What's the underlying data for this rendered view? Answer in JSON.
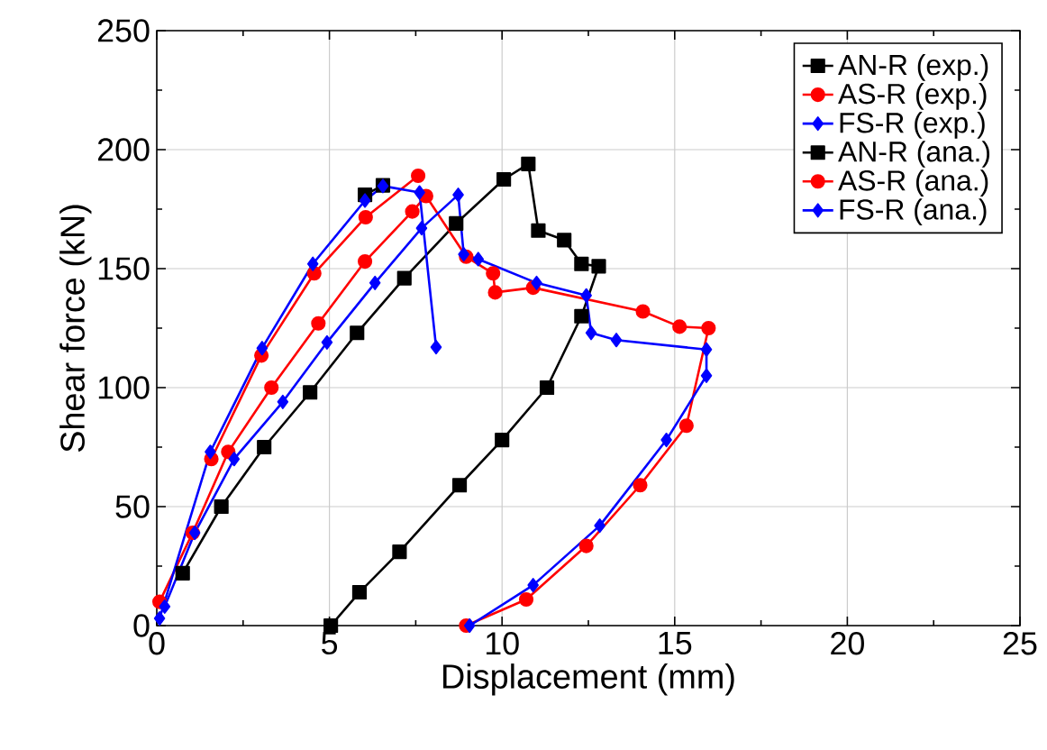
{
  "chart_data": {
    "type": "line",
    "xlabel": "Displacement (mm)",
    "ylabel": "Shear force (kN)",
    "xlim": [
      0,
      25
    ],
    "ylim": [
      0,
      250
    ],
    "xticks": [
      0,
      5,
      10,
      15,
      20,
      25
    ],
    "yticks": [
      0,
      50,
      100,
      150,
      200,
      250
    ],
    "grid": true,
    "legend": "top right",
    "line_style": "solid",
    "series": [
      {
        "name": "AN-R (exp.)",
        "color": "#000000",
        "marker": "square",
        "x": [
          0.75,
          1.87,
          3.11,
          4.44,
          5.8,
          7.17,
          8.67,
          10.05,
          10.76,
          11.05,
          11.8,
          12.3,
          12.8,
          12.3,
          11.3,
          10,
          8.77,
          7.03,
          5.87,
          5.04
        ],
        "values": [
          22,
          50,
          75,
          98,
          123,
          146,
          169,
          187.5,
          194,
          166,
          162,
          152,
          151,
          130,
          100,
          78,
          59,
          31,
          14,
          0
        ]
      },
      {
        "name": "AS-R (exp.)",
        "color": "#ff0000",
        "marker": "circle",
        "x": [
          0.08,
          1.04,
          2.07,
          3.32,
          4.68,
          6.03,
          7.4,
          7.8,
          8.96,
          9.74,
          9.8,
          10.9,
          14.08,
          15.14,
          15.98,
          15.34,
          14,
          12.44,
          10.7,
          8.96
        ],
        "values": [
          10,
          39,
          73,
          100,
          127,
          153,
          174,
          180.5,
          155,
          148,
          140,
          142,
          132,
          125.6,
          125,
          84,
          59,
          33.5,
          11,
          0
        ]
      },
      {
        "name": "FS-R (exp.)",
        "color": "#0000ff",
        "marker": "diamond",
        "x": [
          0.23,
          1.1,
          2.24,
          3.65,
          4.93,
          6.32,
          7.67,
          8.73,
          8.89,
          9.31,
          11,
          12.44,
          12.58,
          13.31,
          15.92,
          15.92,
          14.76,
          12.83,
          10.9,
          9.06
        ],
        "values": [
          8,
          39,
          70,
          94,
          119,
          144,
          167,
          181,
          156,
          154,
          144,
          138.7,
          123,
          120,
          116,
          105,
          78,
          42,
          17,
          0
        ]
      },
      {
        "name": "AN-R (ana.)",
        "color": "#000000",
        "marker": "square",
        "x": [
          6.03,
          6.55
        ],
        "values": [
          181,
          185
        ]
      },
      {
        "name": "AS-R (ana.)",
        "color": "#ff0000",
        "marker": "circle",
        "x": [
          1.58,
          3.03,
          4.56,
          6.05,
          7.57
        ],
        "values": [
          70,
          113.5,
          148,
          171.6,
          189
        ]
      },
      {
        "name": "FS-R (ana.)",
        "color": "#0000ff",
        "marker": "diamond",
        "x": [
          0.08,
          1.55,
          3.05,
          4.52,
          6.03,
          6.55,
          7.61,
          8.09
        ],
        "values": [
          3,
          73,
          116.6,
          152,
          178.6,
          184.7,
          182,
          117
        ]
      }
    ]
  }
}
